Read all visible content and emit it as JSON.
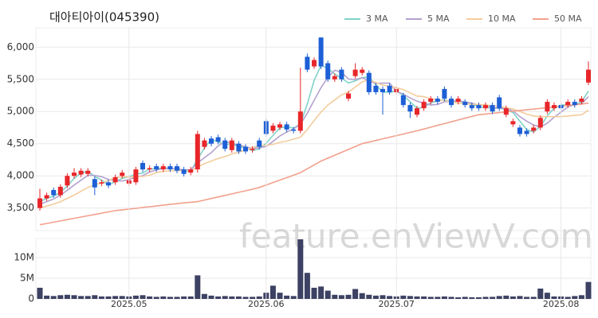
{
  "chart_data": [
    {
      "type": "candlestick",
      "title": "대아티아이(045390)",
      "open": [
        3500,
        3650,
        3780,
        3700,
        3850,
        4000,
        4020,
        4030,
        3950,
        3880,
        3900,
        3900,
        4000,
        3880,
        3900,
        4200,
        4100,
        4150,
        4100,
        4150,
        4150,
        4100,
        4050,
        4100,
        4450,
        4580,
        4600,
        4550,
        4400,
        4500,
        4450,
        4400,
        4550,
        4850,
        4700,
        4750,
        4800,
        4720,
        4700,
        5850,
        5700,
        6150,
        5750,
        5500,
        5650,
        5200,
        5550,
        5600,
        5600,
        5400,
        5350,
        5400,
        5300,
        5250,
        5100,
        4950,
        5050,
        5150,
        5200,
        5350,
        5200,
        5150,
        5150,
        5100,
        5100,
        5050,
        5100,
        5220,
        4950,
        4800,
        4750,
        4700,
        4700,
        4750,
        5000,
        5050,
        5100,
        5100,
        5150,
        5150,
        5450
      ],
      "high": [
        3800,
        3740,
        3820,
        3870,
        4040,
        4120,
        4120,
        4120,
        3990,
        3940,
        3940,
        4020,
        4090,
        3970,
        4140,
        4240,
        4160,
        4190,
        4190,
        4190,
        4190,
        4140,
        4140,
        4700,
        4590,
        4620,
        4640,
        4590,
        4590,
        4540,
        4490,
        4460,
        4590,
        4890,
        4820,
        4840,
        4840,
        4760,
        5680,
        5900,
        5840,
        6150,
        5790,
        5590,
        5690,
        5320,
        5750,
        5690,
        5640,
        5440,
        5390,
        5440,
        5390,
        5290,
        5140,
        5090,
        5190,
        5240,
        5240,
        5390,
        5240,
        5240,
        5190,
        5140,
        5140,
        5140,
        5140,
        5260,
        5090,
        4890,
        4790,
        4740,
        4790,
        4940,
        5190,
        5140,
        5140,
        5190,
        5190,
        5240,
        5780
      ],
      "low": [
        3460,
        3610,
        3660,
        3660,
        3810,
        3960,
        3980,
        3990,
        3700,
        3840,
        3810,
        3860,
        3960,
        3840,
        3860,
        4060,
        4060,
        4060,
        4060,
        4060,
        4040,
        3990,
        4010,
        4050,
        4410,
        4460,
        4490,
        4380,
        4360,
        4340,
        4340,
        4360,
        4410,
        4610,
        4660,
        4710,
        4680,
        4660,
        4660,
        5610,
        5660,
        5660,
        5460,
        5460,
        5460,
        5160,
        5510,
        5560,
        5260,
        5260,
        4950,
        5260,
        5260,
        5060,
        4900,
        4910,
        5010,
        5110,
        5110,
        5160,
        5060,
        5110,
        5060,
        5010,
        5010,
        5010,
        4960,
        5010,
        4910,
        4760,
        4610,
        4610,
        4660,
        4710,
        4960,
        5010,
        5010,
        5060,
        5060,
        5110,
        5410
      ],
      "close": [
        3650,
        3700,
        3700,
        3830,
        4000,
        4050,
        4080,
        4080,
        3820,
        3900,
        3850,
        3980,
        4050,
        3930,
        4100,
        4100,
        4120,
        4100,
        4150,
        4100,
        4080,
        4030,
        4100,
        4650,
        4550,
        4500,
        4530,
        4420,
        4550,
        4380,
        4380,
        4420,
        4450,
        4650,
        4780,
        4800,
        4720,
        4700,
        5000,
        5650,
        5800,
        5700,
        5500,
        5550,
        5500,
        5280,
        5650,
        5650,
        5300,
        5300,
        5300,
        5300,
        5350,
        5100,
        5000,
        5050,
        5150,
        5200,
        5150,
        5200,
        5100,
        5200,
        5100,
        5050,
        5050,
        5100,
        5000,
        5050,
        5050,
        4850,
        4650,
        4650,
        4750,
        4900,
        5150,
        5100,
        5050,
        5150,
        5100,
        5200,
        5650
      ],
      "up_color": "#e8262a",
      "down_color": "#1d5fd6",
      "series": [
        {
          "name": "3 MA",
          "color": "#7fd3c8",
          "values": [
            3600,
            3650,
            3683,
            3743,
            3843,
            3960,
            4043,
            4070,
            3993,
            3933,
            3857,
            3910,
            3960,
            3987,
            4027,
            4043,
            4107,
            4107,
            4123,
            4117,
            4110,
            4070,
            4070,
            4260,
            4433,
            4567,
            4527,
            4483,
            4500,
            4450,
            4437,
            4393,
            4417,
            4507,
            4627,
            4743,
            4767,
            4740,
            4807,
            5117,
            5483,
            5717,
            5667,
            5583,
            5517,
            5443,
            5477,
            5527,
            5533,
            5417,
            5300,
            5300,
            5317,
            5250,
            5150,
            5050,
            5067,
            5133,
            5167,
            5183,
            5150,
            5167,
            5133,
            5117,
            5067,
            5067,
            5050,
            5050,
            5033,
            4983,
            4850,
            4717,
            4683,
            4767,
            4933,
            5050,
            5100,
            5100,
            5100,
            5150,
            5317
          ]
        },
        {
          "name": "5 MA",
          "color": "#b4a2cf",
          "values": [
            3560,
            3600,
            3640,
            3700,
            3776,
            3856,
            3932,
            4008,
            4006,
            3986,
            3946,
            3926,
            3920,
            3942,
            3982,
            4002,
            4060,
            4090,
            4114,
            4114,
            4110,
            4092,
            4092,
            4202,
            4282,
            4362,
            4466,
            4530,
            4510,
            4476,
            4452,
            4430,
            4436,
            4456,
            4536,
            4620,
            4680,
            4730,
            4800,
            4974,
            5174,
            5370,
            5530,
            5640,
            5610,
            5506,
            5496,
            5526,
            5476,
            5436,
            5440,
            5440,
            5310,
            5270,
            5210,
            5160,
            5130,
            5100,
            5110,
            5150,
            5160,
            5170,
            5150,
            5130,
            5100,
            5100,
            5060,
            5050,
            5050,
            5010,
            4920,
            4850,
            4790,
            4760,
            4820,
            4910,
            4990,
            5070,
            5110,
            5120,
            5230
          ]
        },
        {
          "name": "10 MA",
          "color": "#f3cc9c",
          "values": [
            3500,
            3530,
            3560,
            3600,
            3650,
            3700,
            3760,
            3820,
            3860,
            3890,
            3930,
            3970,
            3990,
            3980,
            3990,
            3990,
            4010,
            4050,
            4070,
            4080,
            4080,
            4080,
            4080,
            4140,
            4190,
            4230,
            4270,
            4300,
            4340,
            4370,
            4400,
            4440,
            4470,
            4470,
            4490,
            4520,
            4540,
            4570,
            4600,
            4720,
            4860,
            4990,
            5100,
            5180,
            5260,
            5300,
            5380,
            5460,
            5490,
            5450,
            5410,
            5390,
            5370,
            5340,
            5290,
            5240,
            5230,
            5200,
            5180,
            5170,
            5150,
            5130,
            5120,
            5110,
            5110,
            5100,
            5090,
            5080,
            5060,
            5040,
            5000,
            4960,
            4930,
            4920,
            4920,
            4920,
            4920,
            4930,
            4940,
            4950,
            5020
          ]
        },
        {
          "name": "50 MA",
          "color": "#f2a08c",
          "values": [
            3240,
            3260,
            3280,
            3300,
            3320,
            3340,
            3360,
            3380,
            3400,
            3420,
            3440,
            3460,
            3472,
            3484,
            3496,
            3508,
            3520,
            3532,
            3544,
            3556,
            3568,
            3580,
            3590,
            3600,
            3624,
            3648,
            3672,
            3696,
            3720,
            3744,
            3768,
            3792,
            3820,
            3858,
            3896,
            3934,
            3972,
            4010,
            4050,
            4110,
            4170,
            4230,
            4275,
            4320,
            4365,
            4410,
            4455,
            4500,
            4525,
            4550,
            4575,
            4600,
            4625,
            4650,
            4675,
            4700,
            4728,
            4756,
            4784,
            4812,
            4840,
            4868,
            4896,
            4924,
            4950,
            4961,
            4972,
            4983,
            4994,
            5005,
            5016,
            5027,
            5038,
            5049,
            5060,
            5071,
            5082,
            5093,
            5104,
            5115,
            5130
          ]
        }
      ],
      "ylim": [
        3150,
        6300
      ],
      "yticks": [
        {
          "value": 3500,
          "label": "3,500"
        },
        {
          "value": 4000,
          "label": "4,000"
        },
        {
          "value": 4500,
          "label": "4,500"
        },
        {
          "value": 5000,
          "label": "5,000"
        },
        {
          "value": 5500,
          "label": "5,500"
        },
        {
          "value": 6000,
          "label": "6,000"
        }
      ],
      "grid": true,
      "watermark": "feature.enViewV.com"
    },
    {
      "type": "bar",
      "color": "#3d4163",
      "categories": [
        null,
        null,
        null,
        null,
        null,
        null,
        null,
        null,
        null,
        null,
        null,
        null,
        null,
        "2025.05",
        null,
        null,
        null,
        null,
        null,
        null,
        null,
        null,
        null,
        null,
        null,
        null,
        null,
        null,
        null,
        null,
        null,
        null,
        null,
        "2025.06",
        null,
        null,
        null,
        null,
        null,
        null,
        null,
        null,
        null,
        null,
        null,
        null,
        null,
        null,
        null,
        null,
        null,
        null,
        "2025.07",
        null,
        null,
        null,
        null,
        null,
        null,
        null,
        null,
        null,
        null,
        null,
        null,
        null,
        null,
        null,
        null,
        null,
        null,
        null,
        null,
        null,
        null,
        null,
        "2025.08",
        null,
        null,
        null,
        null
      ],
      "values": [
        2700000,
        800000,
        700000,
        900000,
        1000000,
        900000,
        700000,
        700000,
        900000,
        600000,
        600000,
        700000,
        700000,
        600000,
        800000,
        900000,
        600000,
        500000,
        600000,
        500000,
        500000,
        600000,
        600000,
        5700000,
        1200000,
        800000,
        600000,
        700000,
        600000,
        600000,
        500000,
        500000,
        600000,
        1500000,
        3200000,
        1500000,
        800000,
        700000,
        14400000,
        6300000,
        2700000,
        3000000,
        2000000,
        1000000,
        900000,
        1000000,
        2400000,
        1400000,
        1000000,
        800000,
        900000,
        700000,
        600000,
        800000,
        700000,
        600000,
        600000,
        500000,
        500000,
        600000,
        500000,
        400000,
        500000,
        400000,
        400000,
        500000,
        500000,
        700000,
        800000,
        600000,
        700000,
        500000,
        500000,
        2500000,
        1500000,
        600000,
        600000,
        500000,
        700000,
        900000,
        4100000
      ],
      "ylim": [
        0,
        14600000
      ],
      "yticks": [
        0,
        {
          "value": 5000000,
          "label": "5M"
        },
        {
          "value": 10000000,
          "label": "10M"
        }
      ],
      "grid": true
    }
  ]
}
